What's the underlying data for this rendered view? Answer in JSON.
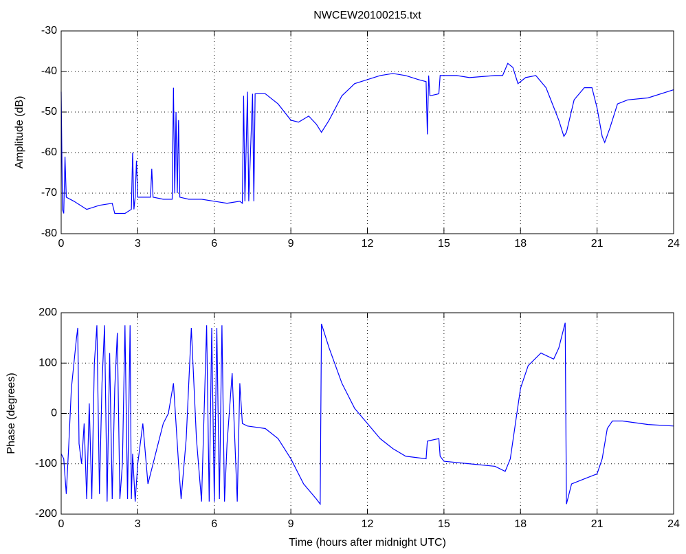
{
  "chart_data": [
    {
      "type": "line",
      "title": "NWCEW20100215.txt",
      "y_label": "Amplitude (dB)",
      "color": "#0000ff",
      "grid": true,
      "xlim": [
        0,
        24
      ],
      "xticks": [
        0,
        3,
        6,
        9,
        12,
        15,
        18,
        21,
        24
      ],
      "ylim": [
        -80,
        -30
      ],
      "yticks": [
        -80,
        -70,
        -60,
        -50,
        -40,
        -30
      ],
      "x": [
        0,
        0.05,
        0.1,
        0.15,
        0.2,
        0.5,
        1,
        1.5,
        2,
        2.1,
        2.5,
        2.75,
        2.8,
        2.85,
        2.9,
        2.95,
        3,
        3.5,
        3.55,
        3.6,
        4,
        4.35,
        4.4,
        4.45,
        4.5,
        4.55,
        4.6,
        4.65,
        5,
        5.5,
        6,
        6.5,
        7,
        7.1,
        7.15,
        7.2,
        7.3,
        7.35,
        7.5,
        7.55,
        7.6,
        8,
        8.5,
        9,
        9.3,
        9.7,
        10,
        10.2,
        10.5,
        11,
        11.5,
        12,
        12.5,
        13,
        13.5,
        14,
        14.3,
        14.35,
        14.4,
        14.45,
        14.8,
        14.85,
        15,
        15.5,
        16,
        17,
        17.3,
        17.5,
        17.7,
        17.9,
        18.2,
        18.6,
        19,
        19.5,
        19.7,
        19.8,
        20.1,
        20.5,
        20.8,
        21,
        21.2,
        21.3,
        21.5,
        21.8,
        22.2,
        23,
        24
      ],
      "values": [
        -45,
        -74,
        -75,
        -61,
        -71,
        -72,
        -74,
        -73,
        -72.5,
        -75,
        -75,
        -74,
        -60,
        -74,
        -71,
        -62,
        -71,
        -71,
        -64,
        -71,
        -71.5,
        -71.5,
        -44,
        -70,
        -50,
        -70,
        -52,
        -71,
        -71.5,
        -71.5,
        -72,
        -72.5,
        -72,
        -72.5,
        -46,
        -72,
        -45,
        -72,
        -45.5,
        -72,
        -45.5,
        -45.5,
        -48,
        -52,
        -52.5,
        -51,
        -53,
        -55,
        -52,
        -46,
        -43,
        -42,
        -41,
        -40.5,
        -41,
        -42,
        -42.5,
        -55.5,
        -41,
        -46,
        -45.5,
        -41,
        -41,
        -41,
        -41.5,
        -41,
        -41,
        -38,
        -39,
        -43,
        -41.5,
        -41,
        -44,
        -52,
        -56,
        -55,
        -47,
        -44,
        -44,
        -49,
        -56,
        -57.5,
        -54,
        -48,
        -47,
        -46.5,
        -44.5
      ]
    },
    {
      "type": "line",
      "x_label": "Time (hours after midnight UTC)",
      "y_label": "Phase (degrees)",
      "color": "#0000ff",
      "grid": true,
      "xlim": [
        0,
        24
      ],
      "xticks": [
        0,
        3,
        6,
        9,
        12,
        15,
        18,
        21,
        24
      ],
      "ylim": [
        -200,
        200
      ],
      "yticks": [
        -200,
        -100,
        0,
        100,
        200
      ],
      "x": [
        0,
        0.1,
        0.2,
        0.3,
        0.4,
        0.5,
        0.6,
        0.65,
        0.7,
        0.8,
        0.9,
        1,
        1.1,
        1.2,
        1.3,
        1.4,
        1.5,
        1.6,
        1.7,
        1.8,
        1.9,
        2,
        2.1,
        2.2,
        2.3,
        2.4,
        2.5,
        2.6,
        2.7,
        2.75,
        2.8,
        2.9,
        3,
        3.2,
        3.4,
        3.6,
        3.8,
        4,
        4.2,
        4.4,
        4.6,
        4.7,
        4.9,
        5.1,
        5.3,
        5.5,
        5.7,
        5.8,
        5.9,
        6,
        6.1,
        6.2,
        6.3,
        6.4,
        6.5,
        6.7,
        6.9,
        7,
        7.1,
        7.3,
        8,
        8.5,
        9,
        9.5,
        10,
        10.15,
        10.2,
        10.5,
        11,
        11.5,
        12,
        12.5,
        13,
        13.5,
        14.3,
        14.35,
        14.8,
        14.85,
        15,
        16,
        17,
        17.4,
        17.6,
        18,
        18.3,
        18.8,
        19.3,
        19.5,
        19.75,
        19.8,
        20,
        20.5,
        21,
        21.2,
        21.4,
        21.6,
        22,
        23,
        24
      ],
      "values": [
        -80,
        -90,
        -160,
        -60,
        50,
        100,
        150,
        170,
        -60,
        -100,
        -20,
        -170,
        20,
        -170,
        100,
        175,
        -160,
        60,
        175,
        -175,
        120,
        -170,
        50,
        160,
        -170,
        -100,
        175,
        -170,
        175,
        -170,
        -80,
        -175,
        -100,
        -20,
        -140,
        -100,
        -60,
        -20,
        0,
        60,
        -100,
        -170,
        -50,
        170,
        -50,
        -175,
        175,
        -175,
        170,
        -175,
        170,
        -170,
        175,
        -175,
        -60,
        80,
        -175,
        60,
        -20,
        -25,
        -30,
        -50,
        -90,
        -140,
        -170,
        -180,
        178,
        130,
        60,
        10,
        -20,
        -50,
        -70,
        -85,
        -90,
        -55,
        -50,
        -85,
        -95,
        -100,
        -105,
        -115,
        -90,
        50,
        95,
        120,
        108,
        130,
        180,
        -180,
        -140,
        -130,
        -120,
        -90,
        -30,
        -15,
        -15,
        -22,
        -25
      ]
    }
  ]
}
